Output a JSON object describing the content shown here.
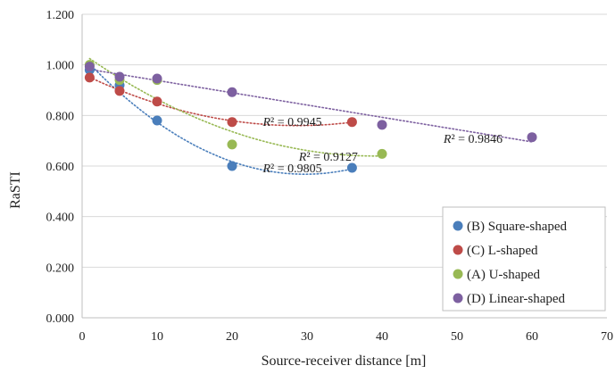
{
  "chart_data": {
    "type": "scatter",
    "title": "",
    "xlabel": "Source-receiver distance [m]",
    "ylabel": "RaSTI",
    "xlim": [
      0,
      70
    ],
    "ylim": [
      0,
      1.2
    ],
    "x_ticks": [
      0,
      10,
      20,
      30,
      40,
      50,
      60,
      70
    ],
    "y_ticks": [
      0,
      0.2,
      0.4,
      0.6,
      0.8,
      1.0,
      1.2
    ],
    "x_tick_labels": [
      "0",
      "10",
      "20",
      "30",
      "40",
      "50",
      "60",
      "70"
    ],
    "y_tick_labels": [
      "0.000",
      "0.200",
      "0.400",
      "0.600",
      "0.800",
      "1.000",
      "1.200"
    ],
    "grid": "horizontal",
    "legend_position": "bottom-right",
    "series": [
      {
        "name": "(B) Square-shaped",
        "color": "#4a7ebb",
        "x": [
          1,
          5,
          10,
          20,
          36
        ],
        "y": [
          0.98,
          0.92,
          0.78,
          0.6,
          0.593
        ],
        "trendline": "polynomial",
        "r_squared_label": "R² = 0.9805",
        "r_squared_anchor": [
          24.1,
          0.575
        ]
      },
      {
        "name": "(C) L-shaped",
        "color": "#be4b48",
        "x": [
          1,
          5,
          10,
          20,
          36
        ],
        "y": [
          0.95,
          0.897,
          0.855,
          0.774,
          0.774
        ],
        "trendline": "polynomial",
        "r_squared_label": "R² = 0.9945",
        "r_squared_anchor": [
          24.1,
          0.758
        ]
      },
      {
        "name": "(A) U-shaped",
        "color": "#98b954",
        "x": [
          1,
          5,
          10,
          20,
          40
        ],
        "y": [
          1.0,
          0.94,
          0.94,
          0.685,
          0.648
        ],
        "trendline": "polynomial",
        "r_squared_label": "R² = 0.9127",
        "r_squared_anchor": [
          28.9,
          0.622
        ]
      },
      {
        "name": "(D) Linear-shaped",
        "color": "#7d60a0",
        "x": [
          1,
          5,
          10,
          20,
          40,
          60
        ],
        "y": [
          0.993,
          0.953,
          0.946,
          0.892,
          0.763,
          0.714
        ],
        "trendline": "linear",
        "r_squared_label": "R² = 0.9846",
        "r_squared_anchor": [
          48.2,
          0.692
        ]
      }
    ]
  }
}
